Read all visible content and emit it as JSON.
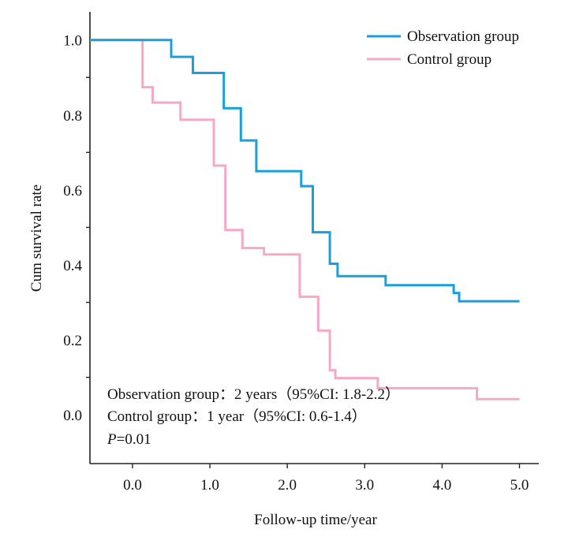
{
  "chart_data": {
    "type": "line",
    "subtype": "kaplan-meier-step",
    "xlabel": "Follow-up time/year",
    "ylabel": "Cum survival rate",
    "xlim": [
      -0.55,
      5.25
    ],
    "ylim": [
      -0.13,
      1.075
    ],
    "x_ticks": [
      0.0,
      1.0,
      2.0,
      3.0,
      4.0,
      5.0
    ],
    "x_tick_labels": [
      "0.0",
      "1.0",
      "2.0",
      "3.0",
      "4.0",
      "5.0"
    ],
    "y_tick_labels": [
      "1.0",
      "0.8",
      "0.6",
      "0.4",
      "0.2",
      "0.0"
    ],
    "y_label_ticks": [
      1.0,
      0.8,
      0.6,
      0.4,
      0.2,
      0.0
    ],
    "y_minor_ticks": [
      0.9,
      0.7,
      0.5,
      0.3,
      0.1
    ],
    "grid": false,
    "legend_position": "top-right",
    "series": [
      {
        "name": "Observation group",
        "color": "#1a9fdc",
        "points": [
          [
            -0.55,
            1.0
          ],
          [
            0.5,
            1.0
          ],
          [
            0.5,
            0.955
          ],
          [
            0.78,
            0.955
          ],
          [
            0.78,
            0.912
          ],
          [
            1.18,
            0.912
          ],
          [
            1.18,
            0.818
          ],
          [
            1.4,
            0.818
          ],
          [
            1.4,
            0.732
          ],
          [
            1.6,
            0.732
          ],
          [
            1.6,
            0.65
          ],
          [
            2.18,
            0.65
          ],
          [
            2.18,
            0.61
          ],
          [
            2.33,
            0.61
          ],
          [
            2.33,
            0.487
          ],
          [
            2.55,
            0.487
          ],
          [
            2.55,
            0.403
          ],
          [
            2.65,
            0.403
          ],
          [
            2.65,
            0.37
          ],
          [
            3.27,
            0.37
          ],
          [
            3.27,
            0.346
          ],
          [
            4.15,
            0.346
          ],
          [
            4.15,
            0.325
          ],
          [
            4.22,
            0.325
          ],
          [
            4.22,
            0.303
          ],
          [
            5.0,
            0.303
          ]
        ]
      },
      {
        "name": "Control group",
        "color": "#f7a8c6",
        "points": [
          [
            -0.55,
            1.0
          ],
          [
            0.13,
            1.0
          ],
          [
            0.13,
            0.874
          ],
          [
            0.26,
            0.874
          ],
          [
            0.26,
            0.833
          ],
          [
            0.62,
            0.833
          ],
          [
            0.62,
            0.787
          ],
          [
            1.05,
            0.787
          ],
          [
            1.05,
            0.665
          ],
          [
            1.2,
            0.665
          ],
          [
            1.2,
            0.493
          ],
          [
            1.42,
            0.493
          ],
          [
            1.42,
            0.445
          ],
          [
            1.7,
            0.445
          ],
          [
            1.7,
            0.428
          ],
          [
            2.16,
            0.428
          ],
          [
            2.16,
            0.315
          ],
          [
            2.4,
            0.315
          ],
          [
            2.4,
            0.225
          ],
          [
            2.55,
            0.225
          ],
          [
            2.55,
            0.119
          ],
          [
            2.62,
            0.119
          ],
          [
            2.62,
            0.098
          ],
          [
            3.17,
            0.098
          ],
          [
            3.17,
            0.071
          ],
          [
            4.45,
            0.071
          ],
          [
            4.45,
            0.042
          ],
          [
            5.0,
            0.042
          ]
        ]
      }
    ],
    "annotations": [
      "Observation group：2 years（95%CI: 1.8-2.2）",
      "Control group：1 year（95%CI: 0.6-1.4）"
    ],
    "p_label": "P",
    "p_value": "=0.01"
  }
}
